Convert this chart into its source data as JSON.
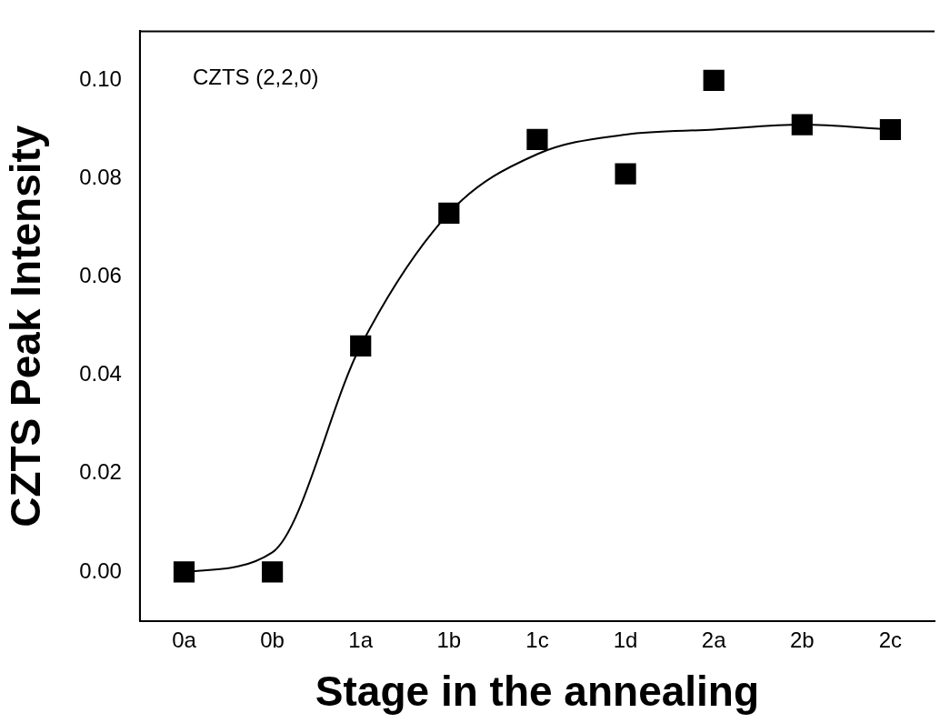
{
  "chart_data": {
    "type": "scatter",
    "xlabel": "Stage in the annealing",
    "ylabel": "CZTS Peak Intensity",
    "annotations": [
      "CZTS (2,2,0)"
    ],
    "categories": [
      "0a",
      "0b",
      "1a",
      "1b",
      "1c",
      "1d",
      "2a",
      "2b",
      "2c"
    ],
    "ylim": [
      -0.01,
      0.11
    ],
    "yticks": [
      {
        "value": 0,
        "label": "0.00"
      },
      {
        "value": 0.02,
        "label": "0.02"
      },
      {
        "value": 0.04,
        "label": "0.04"
      },
      {
        "value": 0.06,
        "label": "0.06"
      },
      {
        "value": 0.08,
        "label": "0.08"
      },
      {
        "value": 0.1,
        "label": "0.10"
      }
    ],
    "grid": false,
    "legend": false,
    "series": [
      {
        "type": "scatter",
        "marker": "square",
        "color": "#000000",
        "values": [
          0,
          0,
          0.046,
          0.073,
          0.088,
          0.081,
          0.1,
          0.091,
          0.09
        ]
      },
      {
        "type": "line",
        "marker": "none",
        "line_style": "solid",
        "color": "#000000",
        "values": [
          0,
          0.004,
          0.046,
          0.073,
          0.085,
          0.089,
          0.09,
          0.091,
          0.09
        ]
      }
    ]
  }
}
